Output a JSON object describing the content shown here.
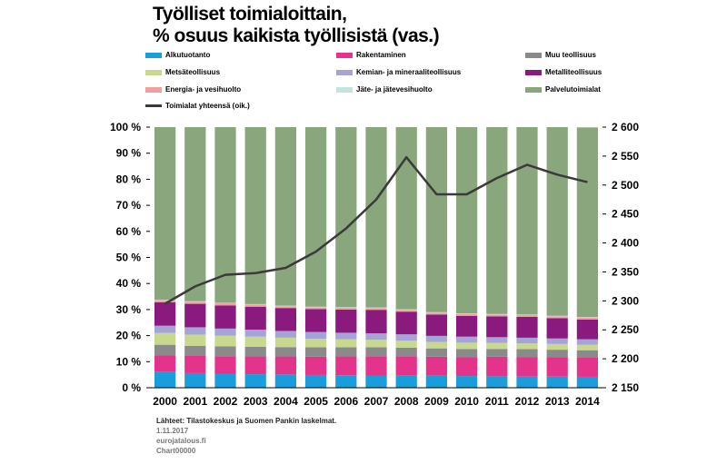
{
  "title_line1": "Työlliset toimialoittain,",
  "title_line2": "% osuus kaikista työllisistä (vas.)",
  "colors": {
    "alkutuotanto": "#1a9ddb",
    "rakentaminen": "#e3338a",
    "muu_teollisuus": "#8a8a8a",
    "metsateollisuus": "#c8d98f",
    "kemian": "#a4a4d6",
    "metalli": "#8a1a7e",
    "energia": "#f0a0a0",
    "jate": "#c4e2e0",
    "palvelu": "#8aa67c",
    "total": "#3a3a3a"
  },
  "footer": {
    "source": "Lähteet: Tilastokeskus ja Suomen Pankin laskelmat.",
    "date": "1.11.2017",
    "id1": "eurojatalous.fi",
    "id2": "Chart00000"
  },
  "chart_data": {
    "type": "bar",
    "stacked": true,
    "categories": [
      "2000",
      "2001",
      "2002",
      "2003",
      "2004",
      "2005",
      "2006",
      "2007",
      "2008",
      "2009",
      "2010",
      "2011",
      "2012",
      "2013",
      "2014"
    ],
    "left_axis": {
      "min": 0,
      "max": 100,
      "ticks": [
        "0 %",
        "10 %",
        "20 %",
        "30 %",
        "40 %",
        "50 %",
        "60 %",
        "70 %",
        "80 %",
        "90 %",
        "100 %"
      ]
    },
    "right_axis": {
      "min": 2150,
      "max": 2600,
      "ticks": [
        "2 150",
        "2 200",
        "2 250",
        "2 300",
        "2 350",
        "2 400",
        "2 450",
        "2 500",
        "2 550",
        "2 600"
      ]
    },
    "series": [
      {
        "key": "alkutuotanto",
        "name": "Alkutuotanto",
        "values": [
          6,
          5.6,
          5.4,
          5.2,
          5.1,
          4.9,
          4.8,
          4.7,
          4.6,
          4.6,
          4.5,
          4.4,
          4.3,
          4.3,
          4.2
        ]
      },
      {
        "key": "rakentaminen",
        "name": "Rakentaminen",
        "values": [
          6.5,
          6.6,
          6.7,
          6.8,
          6.9,
          7.0,
          7.2,
          7.4,
          7.5,
          7.3,
          7.3,
          7.5,
          7.5,
          7.4,
          7.3
        ]
      },
      {
        "key": "muu_teollisuus",
        "name": "Muu teollisuus",
        "values": [
          4.0,
          3.9,
          3.8,
          3.7,
          3.6,
          3.6,
          3.5,
          3.4,
          3.3,
          3.2,
          3.1,
          3.0,
          3.0,
          2.9,
          2.9
        ]
      },
      {
        "key": "metsateollisuus",
        "name": "Metsäteollisuus",
        "values": [
          4.5,
          4.3,
          4.1,
          3.9,
          3.6,
          3.3,
          3.1,
          2.9,
          2.7,
          2.5,
          2.4,
          2.3,
          2.2,
          2.2,
          2.1
        ]
      },
      {
        "key": "kemian",
        "name": "Kemian- ja mineraaliteollisuus",
        "values": [
          2.8,
          2.8,
          2.7,
          2.7,
          2.6,
          2.6,
          2.5,
          2.5,
          2.4,
          2.3,
          2.3,
          2.2,
          2.2,
          2.1,
          2.1
        ]
      },
      {
        "key": "metalli",
        "name": "Metalliteollisuus",
        "values": [
          9.0,
          9.0,
          8.9,
          8.8,
          8.8,
          8.8,
          8.9,
          9.0,
          8.7,
          8.2,
          8.0,
          8.0,
          8.0,
          7.8,
          7.6
        ]
      },
      {
        "key": "energia",
        "name": "Energia- ja vesihuolto",
        "values": [
          0.8,
          0.8,
          0.8,
          0.8,
          0.7,
          0.7,
          0.7,
          0.7,
          0.7,
          0.7,
          0.7,
          0.7,
          0.7,
          0.7,
          0.7
        ]
      },
      {
        "key": "jate",
        "name": "Jäte- ja jätevesihuolto",
        "values": [
          0.2,
          0.2,
          0.2,
          0.2,
          0.2,
          0.2,
          0.2,
          0.2,
          0.2,
          0.2,
          0.2,
          0.2,
          0.2,
          0.2,
          0.2
        ]
      },
      {
        "key": "palvelu",
        "name": "Palvelutoimialat",
        "values": [
          66.2,
          66.8,
          67.4,
          67.9,
          68.5,
          68.9,
          69.1,
          69.2,
          69.9,
          71.0,
          71.5,
          71.7,
          71.9,
          72.4,
          72.8
        ]
      }
    ],
    "line_series": {
      "key": "total",
      "name": "Toimialat yhteensä (oik.)",
      "axis": "right",
      "values": [
        2295,
        2325,
        2345,
        2348,
        2357,
        2385,
        2425,
        2475,
        2548,
        2484,
        2484,
        2512,
        2535,
        2518,
        2505
      ]
    }
  }
}
